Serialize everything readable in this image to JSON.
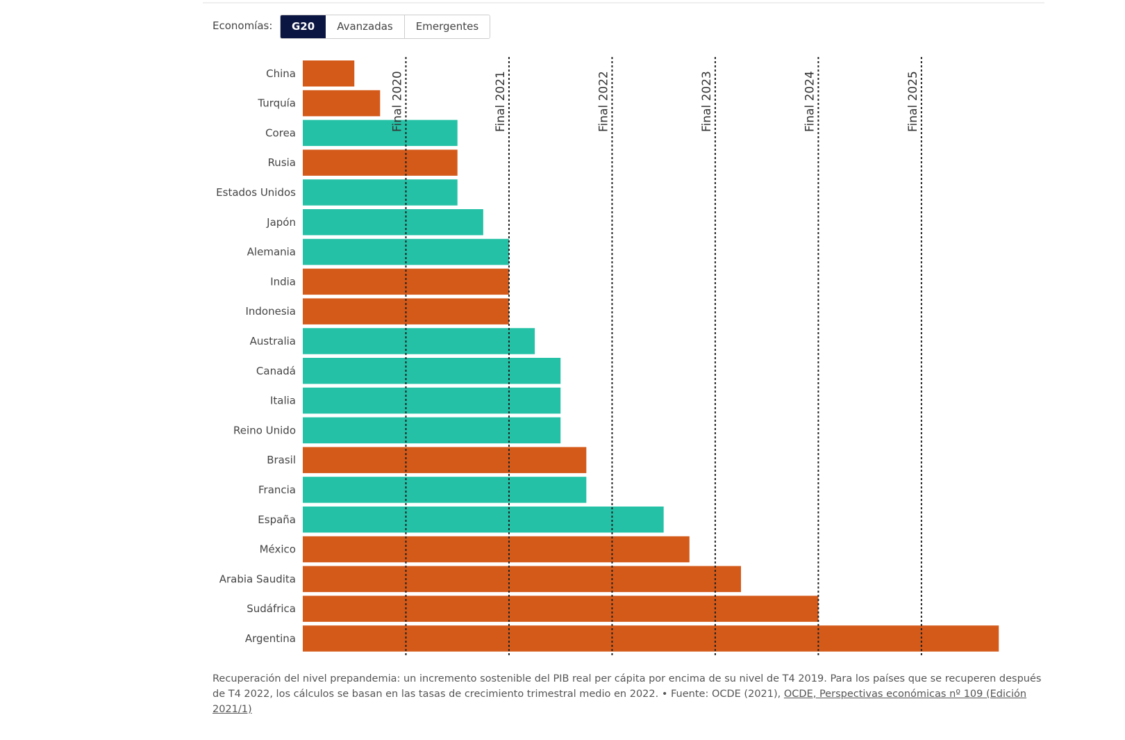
{
  "filter": {
    "label": "Economías:",
    "options": [
      "G20",
      "Avanzadas",
      "Emergentes"
    ],
    "selected": "G20"
  },
  "colors": {
    "emergentes": "#D45A1A",
    "avanzadas": "#24C1A6"
  },
  "chart_data": {
    "type": "bar",
    "orientation": "horizontal",
    "value_unit": "trimestres desde T4 2019",
    "categories": [
      "China",
      "Turquía",
      "Corea",
      "Rusia",
      "Estados Unidos",
      "Japón",
      "Alemania",
      "India",
      "Indonesia",
      "Australia",
      "Canadá",
      "Italia",
      "Reino Unido",
      "Brasil",
      "Francia",
      "España",
      "México",
      "Arabia Saudita",
      "Sudáfrica",
      "Argentina"
    ],
    "values": [
      2,
      3,
      6,
      6,
      6,
      7,
      8,
      8,
      8,
      9,
      10,
      10,
      10,
      11,
      11,
      14,
      15,
      17,
      20,
      27
    ],
    "groups": [
      "emergentes",
      "emergentes",
      "avanzadas",
      "emergentes",
      "avanzadas",
      "avanzadas",
      "avanzadas",
      "emergentes",
      "emergentes",
      "avanzadas",
      "avanzadas",
      "avanzadas",
      "avanzadas",
      "emergentes",
      "avanzadas",
      "avanzadas",
      "emergentes",
      "emergentes",
      "emergentes",
      "emergentes"
    ],
    "reference_lines": [
      {
        "label": "Final 2020",
        "value": 4
      },
      {
        "label": "Final 2021",
        "value": 8
      },
      {
        "label": "Final 2022",
        "value": 12
      },
      {
        "label": "Final 2023",
        "value": 16
      },
      {
        "label": "Final 2024",
        "value": 20
      },
      {
        "label": "Final 2025",
        "value": 24
      }
    ],
    "xlim": [
      0,
      27
    ]
  },
  "caption": {
    "text": "Recuperación del nivel prepandemia: un incremento sostenible del PIB real per cápita por encima de su nivel de T4 2019. Para los países que se recuperen después de T4 2022, los cálculos se basan en las tasas de crecimiento trimestral medio en 2022. • Fuente: OCDE (2021), ",
    "link": "OCDE, Perspectivas económicas nº 109 (Edición 2021/1)"
  }
}
